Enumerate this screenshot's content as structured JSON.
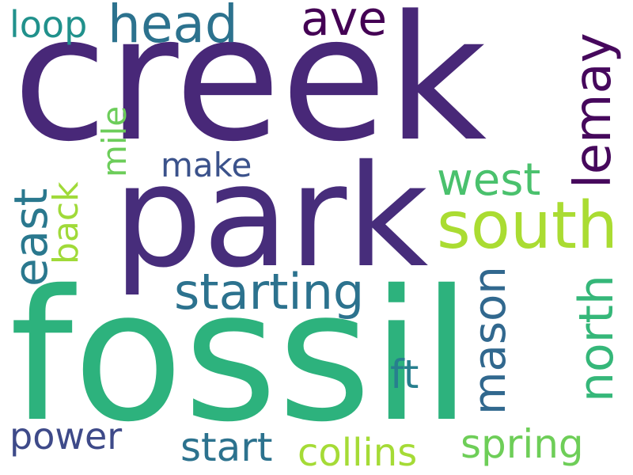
{
  "words": [
    {
      "id": "creek",
      "text": "creek",
      "color": "#482878"
    },
    {
      "id": "park",
      "text": "park",
      "color": "#472d7b"
    },
    {
      "id": "fossil",
      "text": "fossil",
      "color": "#2db27d"
    },
    {
      "id": "south",
      "text": "south",
      "color": "#aadc32"
    },
    {
      "id": "head",
      "text": "head",
      "color": "#2c728e"
    },
    {
      "id": "ave",
      "text": "ave",
      "color": "#440154"
    },
    {
      "id": "lemay",
      "text": "lemay",
      "color": "#46085c"
    },
    {
      "id": "loop",
      "text": "loop",
      "color": "#21918c"
    },
    {
      "id": "mile",
      "text": "mile",
      "color": "#6ccd5a"
    },
    {
      "id": "make",
      "text": "make",
      "color": "#3b528b"
    },
    {
      "id": "west",
      "text": "west",
      "color": "#4ac16d"
    },
    {
      "id": "east",
      "text": "east",
      "color": "#2a788e"
    },
    {
      "id": "back",
      "text": "back",
      "color": "#a0da39"
    },
    {
      "id": "starting",
      "text": "starting",
      "color": "#2c728e"
    },
    {
      "id": "mason",
      "text": "mason",
      "color": "#31688e"
    },
    {
      "id": "north",
      "text": "north",
      "color": "#35b779"
    },
    {
      "id": "ft",
      "text": "ft",
      "color": "#277f8e"
    },
    {
      "id": "power",
      "text": "power",
      "color": "#3e4a89"
    },
    {
      "id": "start",
      "text": "start",
      "color": "#2c728e"
    },
    {
      "id": "collins",
      "text": "collins",
      "color": "#a5db36"
    },
    {
      "id": "spring",
      "text": "spring",
      "color": "#6ece58"
    }
  ]
}
